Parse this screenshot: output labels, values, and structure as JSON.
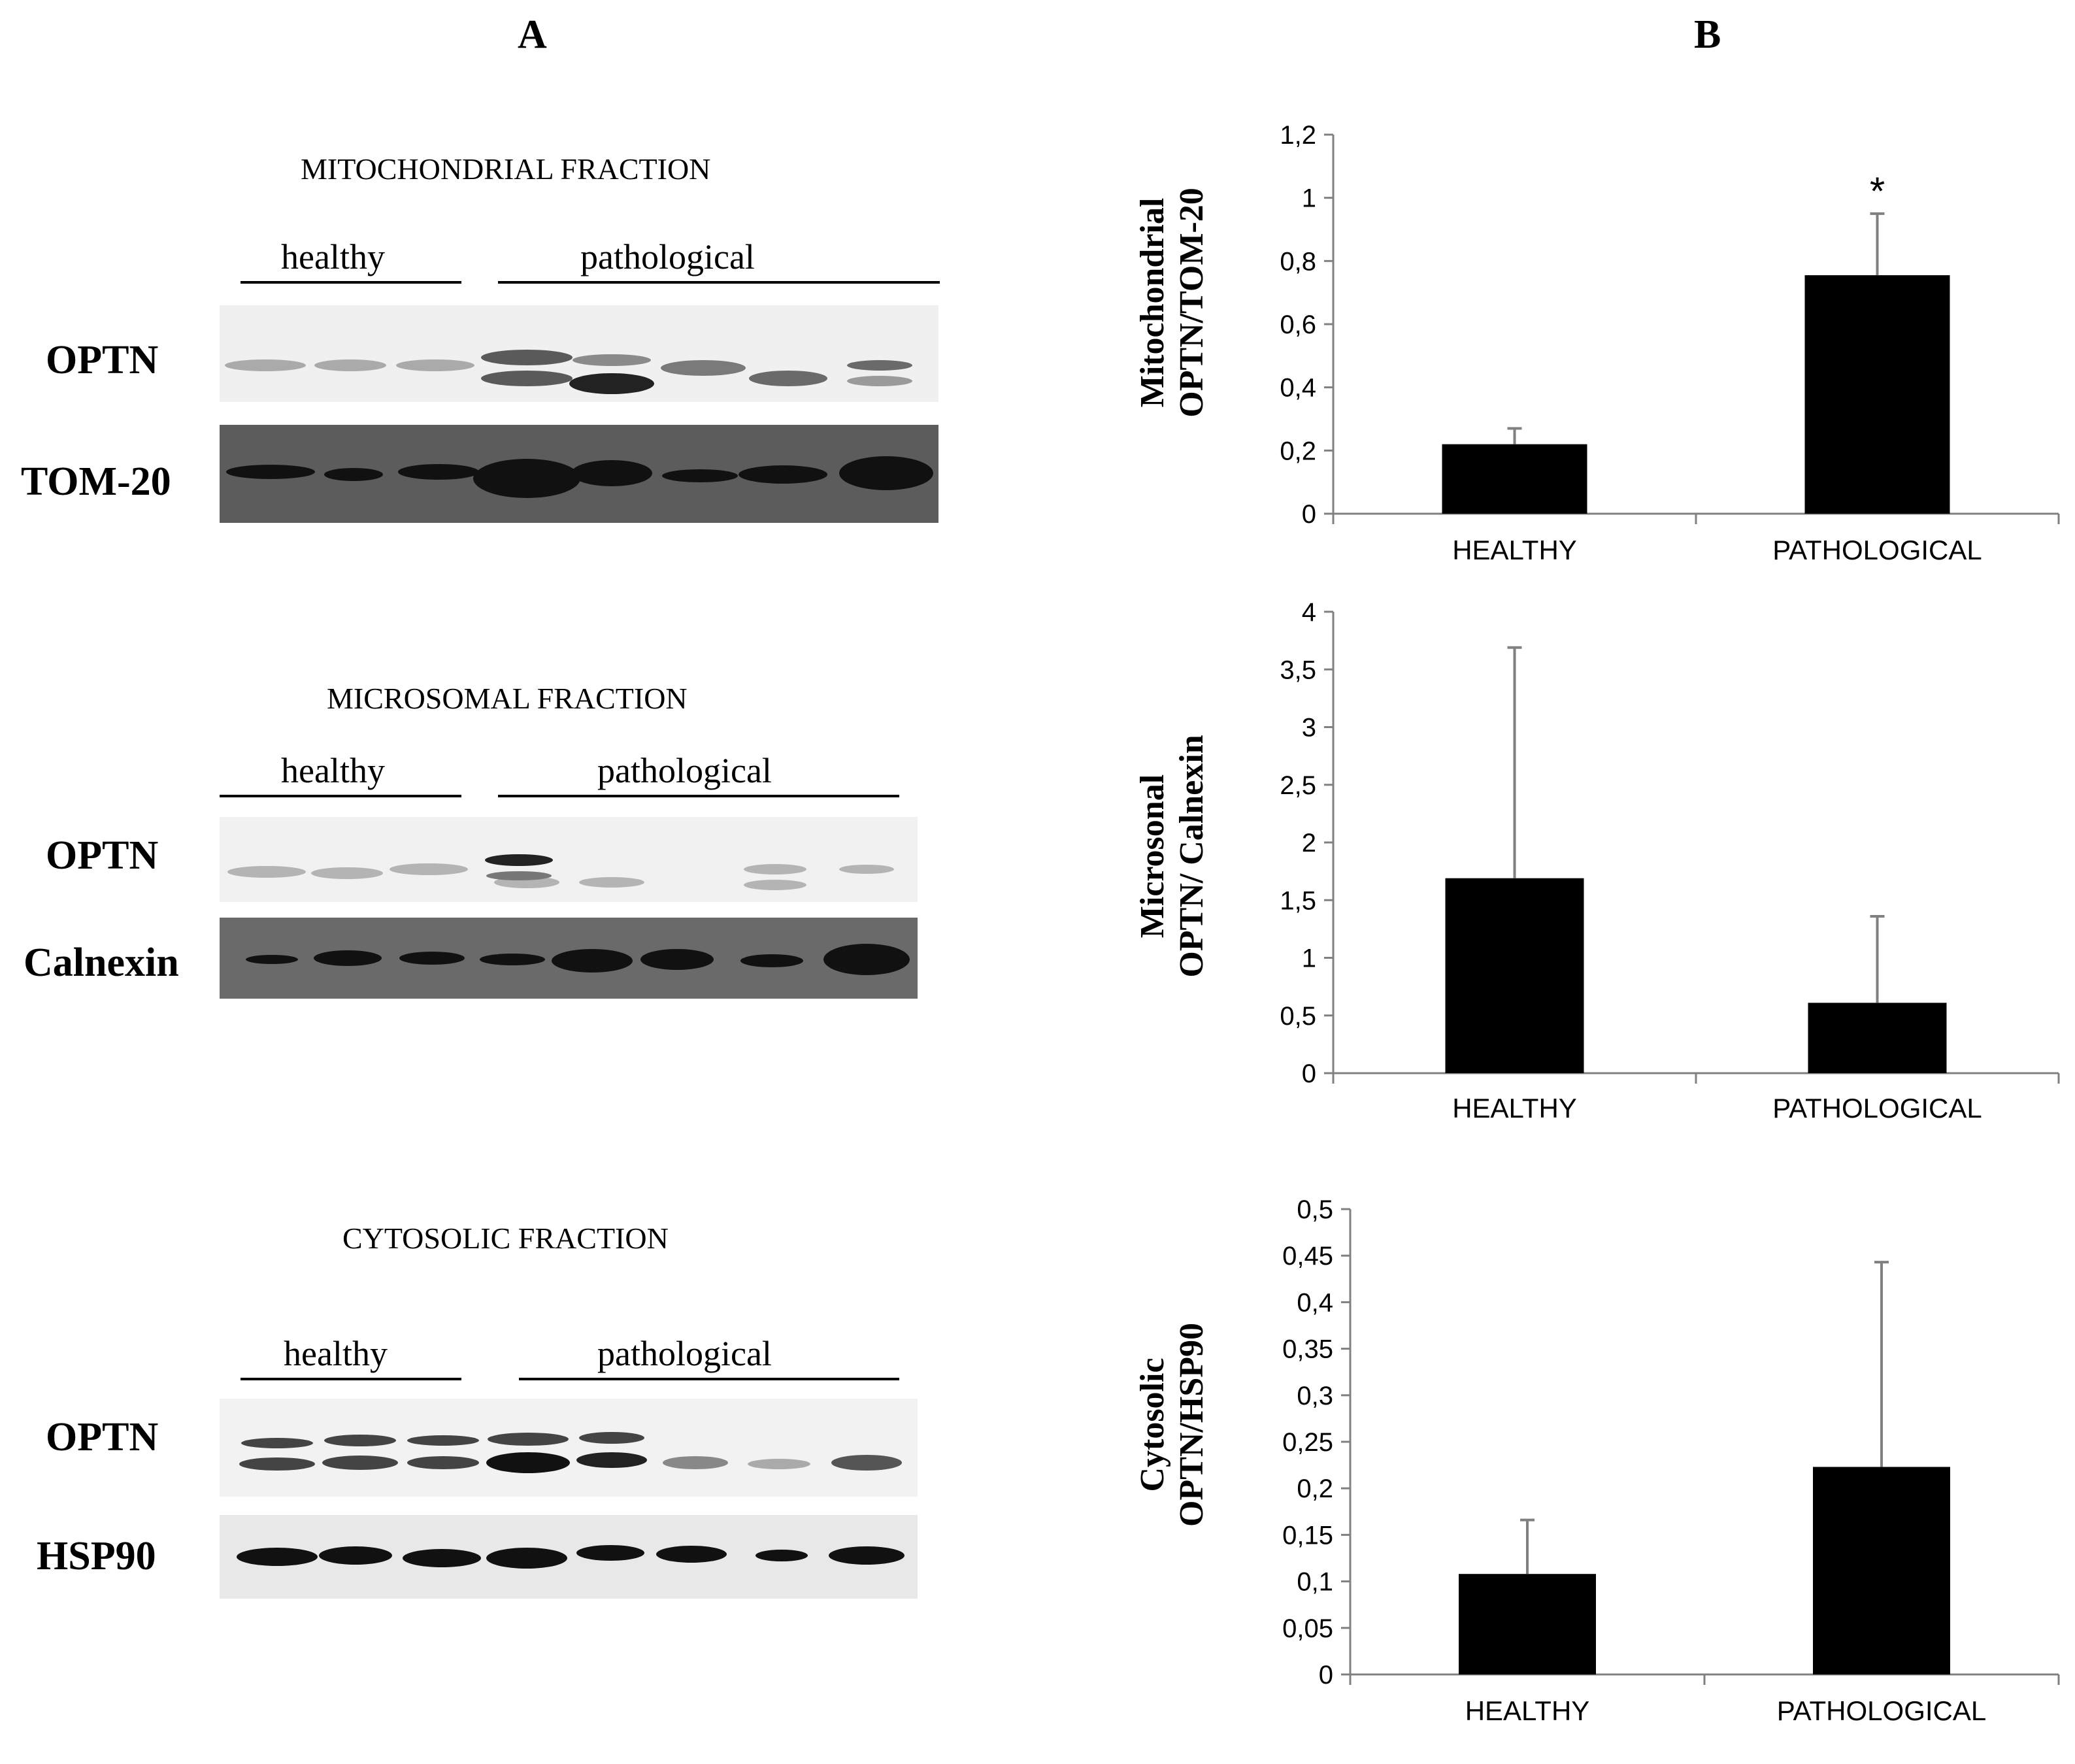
{
  "panel_a_letter": "A",
  "panel_b_letter": "B",
  "blots": [
    {
      "title": "MITOCHONDRIAL FRACTION",
      "groups": [
        "healthy",
        "pathological"
      ],
      "rows": [
        "OPTN",
        "TOM-20"
      ]
    },
    {
      "title": "MICROSOMAL FRACTION",
      "groups": [
        "healthy",
        "pathological"
      ],
      "rows": [
        "OPTN",
        "Calnexin"
      ]
    },
    {
      "title": "CYTOSOLIC FRACTION",
      "groups": [
        "healthy",
        "pathological"
      ],
      "rows": [
        "OPTN",
        "HSP90"
      ]
    }
  ],
  "colors": {
    "bar": "#000000",
    "error_bar": "#808080",
    "axis": "#808080",
    "blot_light": "#f3f3f3",
    "blot_dark": "#5c5c5c"
  },
  "chart_data": [
    {
      "type": "bar",
      "categories": [
        "HEALTHY",
        "PATHOLOGICAL"
      ],
      "values": [
        0.22,
        0.755
      ],
      "errors": [
        0.05,
        0.195
      ],
      "annotations": [
        "",
        "*"
      ],
      "ylabel_lines": [
        "Mitochondrial",
        "OPTN/TOM-20"
      ],
      "ylim": [
        0,
        1.2
      ],
      "ticks": [
        "0",
        "0,2",
        "0,4",
        "0,6",
        "0,8",
        "1",
        "1,2"
      ],
      "grid": false
    },
    {
      "type": "bar",
      "categories": [
        "HEALTHY",
        "PATHOLOGICAL"
      ],
      "values": [
        1.69,
        0.61
      ],
      "errors": [
        2.0,
        0.75
      ],
      "annotations": [
        "",
        ""
      ],
      "ylabel_lines": [
        "Microsonal",
        "OPTN/ Calnexin"
      ],
      "ylim": [
        0,
        4
      ],
      "ticks": [
        "0",
        "0,5",
        "1",
        "1,5",
        "2",
        "2,5",
        "3",
        "3,5",
        "4"
      ],
      "grid": false
    },
    {
      "type": "bar",
      "categories": [
        "HEALTHY",
        "PATHOLOGICAL"
      ],
      "values": [
        0.108,
        0.223
      ],
      "errors": [
        0.058,
        0.22
      ],
      "annotations": [
        "",
        ""
      ],
      "ylabel_lines": [
        "Cytosolic",
        "OPTN/HSP90"
      ],
      "ylim": [
        0,
        0.5
      ],
      "ticks": [
        "0",
        "0,05",
        "0,1",
        "0,15",
        "0,2",
        "0,25",
        "0,3",
        "0,35",
        "0,4",
        "0,45",
        "0,5"
      ],
      "grid": false
    }
  ]
}
